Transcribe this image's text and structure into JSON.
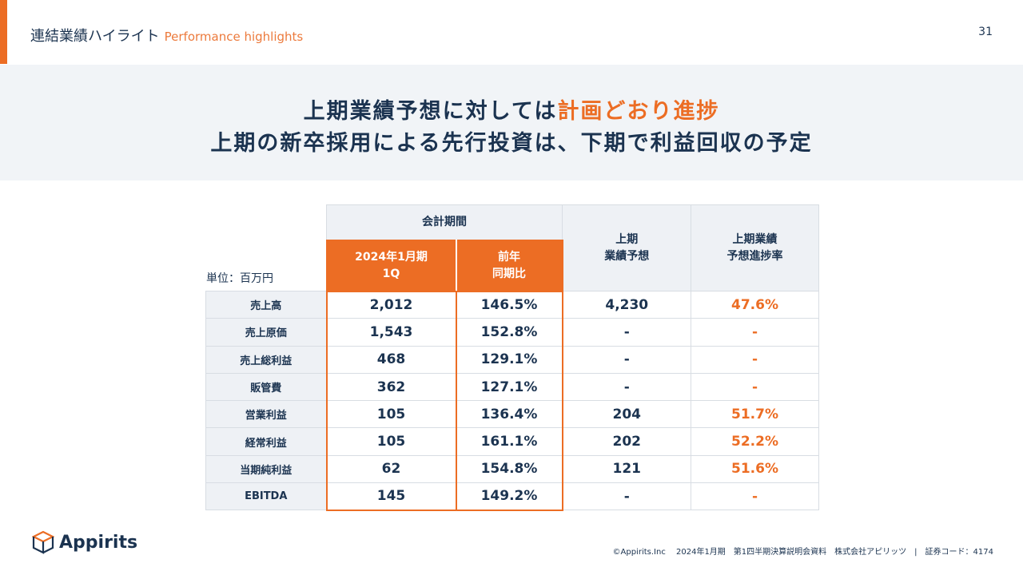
{
  "header": {
    "title_ja": "連結業績ハイライト",
    "title_en": "Performance highlights",
    "page_number": "31"
  },
  "banner": {
    "line1_pre": "上期業績予想に対しては",
    "line1_highlight": "計画どおり進捗",
    "line2": "上期の新卒採用による先行投資は、下期で利益回収の予定"
  },
  "table": {
    "unit": "単位：百万円",
    "group_header": "会計期間",
    "col_current": "2024年1月期",
    "col_current_sub": "1Q",
    "col_yoy": "前年",
    "col_yoy_sub": "同期比",
    "col_forecast": "上期",
    "col_forecast_sub": "業績予想",
    "col_progress": "上期業績",
    "col_progress_sub": "予想進捗率",
    "rows": [
      {
        "label": "売上高",
        "current": "2,012",
        "yoy": "146.5%",
        "forecast": "4,230",
        "progress": "47.6%"
      },
      {
        "label": "売上原価",
        "current": "1,543",
        "yoy": "152.8%",
        "forecast": "-",
        "progress": "-"
      },
      {
        "label": "売上総利益",
        "current": "468",
        "yoy": "129.1%",
        "forecast": "-",
        "progress": "-"
      },
      {
        "label": "販管費",
        "current": "362",
        "yoy": "127.1%",
        "forecast": "-",
        "progress": "-"
      },
      {
        "label": "営業利益",
        "current": "105",
        "yoy": "136.4%",
        "forecast": "204",
        "progress": "51.7%"
      },
      {
        "label": "経常利益",
        "current": "105",
        "yoy": "161.1%",
        "forecast": "202",
        "progress": "52.2%"
      },
      {
        "label": "当期純利益",
        "current": "62",
        "yoy": "154.8%",
        "forecast": "121",
        "progress": "51.6%"
      },
      {
        "label": "EBITDA",
        "current": "145",
        "yoy": "149.2%",
        "forecast": "-",
        "progress": "-"
      }
    ]
  },
  "logo": {
    "text": "Appirits"
  },
  "footer": {
    "text": "©Appirits.Inc　 2024年1月期　第1四半期決算説明会資料　株式会社アピリッツ　|　証券コード：4174"
  }
}
